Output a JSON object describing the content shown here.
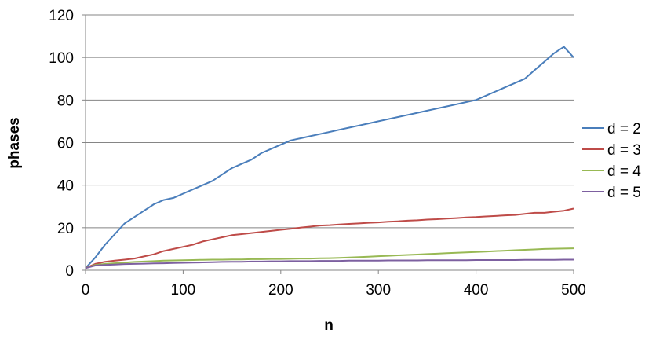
{
  "chart_data": {
    "type": "line",
    "title": "",
    "xlabel": "n",
    "ylabel": "phases",
    "xlim": [
      0,
      500
    ],
    "ylim": [
      0,
      120
    ],
    "xticks": [
      0,
      100,
      200,
      300,
      400,
      500
    ],
    "yticks": [
      0,
      20,
      40,
      60,
      80,
      100,
      120
    ],
    "grid": "horizontal",
    "legend": "right",
    "series": [
      {
        "name": "d = 2",
        "color": "#4a7ebb",
        "x": [
          0,
          10,
          20,
          30,
          40,
          50,
          60,
          70,
          80,
          90,
          100,
          110,
          120,
          130,
          140,
          150,
          160,
          170,
          180,
          190,
          200,
          210,
          220,
          230,
          240,
          250,
          260,
          270,
          280,
          290,
          300,
          310,
          320,
          330,
          340,
          350,
          360,
          370,
          380,
          390,
          400,
          410,
          420,
          430,
          440,
          450,
          460,
          470,
          480,
          490,
          500
        ],
        "y": [
          1,
          6,
          12,
          17,
          22,
          25,
          28,
          31,
          33,
          34,
          36,
          38,
          40,
          42,
          45,
          48,
          50,
          52,
          55,
          57,
          59,
          61,
          62,
          63,
          64,
          65,
          66,
          67,
          68,
          69,
          70,
          71,
          72,
          73,
          74,
          75,
          76,
          77,
          78,
          79,
          80,
          82,
          84,
          86,
          88,
          90,
          94,
          98,
          102,
          105,
          100
        ]
      },
      {
        "name": "d = 3",
        "color": "#be4b48",
        "x": [
          0,
          10,
          20,
          30,
          40,
          50,
          60,
          70,
          80,
          90,
          100,
          110,
          120,
          130,
          140,
          150,
          160,
          170,
          180,
          190,
          200,
          210,
          220,
          230,
          240,
          250,
          260,
          270,
          280,
          290,
          300,
          310,
          320,
          330,
          340,
          350,
          360,
          370,
          380,
          390,
          400,
          410,
          420,
          430,
          440,
          450,
          460,
          470,
          480,
          490,
          500
        ],
        "y": [
          1,
          3,
          4,
          4.5,
          5,
          5.5,
          6.5,
          7.5,
          9,
          10,
          11,
          12,
          13.5,
          14.5,
          15.5,
          16.5,
          17,
          17.5,
          18,
          18.5,
          19,
          19.5,
          20,
          20.5,
          21,
          21.2,
          21.5,
          21.8,
          22,
          22.3,
          22.5,
          22.8,
          23,
          23.3,
          23.5,
          23.8,
          24,
          24.3,
          24.5,
          24.8,
          25,
          25.3,
          25.5,
          25.8,
          26,
          26.5,
          27,
          27,
          27.5,
          28,
          29
        ]
      },
      {
        "name": "d = 4",
        "color": "#98b954",
        "x": [
          0,
          10,
          20,
          30,
          40,
          50,
          60,
          70,
          80,
          90,
          100,
          110,
          120,
          130,
          140,
          150,
          160,
          170,
          180,
          190,
          200,
          210,
          220,
          230,
          240,
          250,
          260,
          270,
          280,
          290,
          300,
          310,
          320,
          330,
          340,
          350,
          360,
          370,
          380,
          390,
          400,
          410,
          420,
          430,
          440,
          450,
          460,
          470,
          480,
          490,
          500
        ],
        "y": [
          1,
          2.5,
          3,
          3.3,
          3.6,
          3.9,
          4.1,
          4.3,
          4.5,
          4.6,
          4.7,
          4.8,
          4.9,
          5,
          5,
          5.1,
          5.1,
          5.2,
          5.2,
          5.3,
          5.3,
          5.4,
          5.5,
          5.5,
          5.6,
          5.7,
          5.8,
          6,
          6.2,
          6.4,
          6.6,
          6.8,
          7,
          7.2,
          7.4,
          7.6,
          7.8,
          8,
          8.2,
          8.4,
          8.6,
          8.8,
          9,
          9.2,
          9.4,
          9.6,
          9.8,
          10,
          10.1,
          10.2,
          10.3
        ]
      },
      {
        "name": "d = 5",
        "color": "#7d60a0",
        "x": [
          0,
          10,
          20,
          30,
          40,
          50,
          60,
          70,
          80,
          90,
          100,
          110,
          120,
          130,
          140,
          150,
          160,
          170,
          180,
          190,
          200,
          210,
          220,
          230,
          240,
          250,
          260,
          270,
          280,
          290,
          300,
          310,
          320,
          330,
          340,
          350,
          360,
          370,
          380,
          390,
          400,
          410,
          420,
          430,
          440,
          450,
          460,
          470,
          480,
          490,
          500
        ],
        "y": [
          1,
          2.2,
          2.5,
          2.7,
          2.9,
          3,
          3.1,
          3.2,
          3.3,
          3.4,
          3.5,
          3.6,
          3.7,
          3.8,
          3.9,
          4,
          4,
          4.1,
          4.1,
          4.2,
          4.2,
          4.3,
          4.3,
          4.3,
          4.4,
          4.4,
          4.4,
          4.5,
          4.5,
          4.5,
          4.5,
          4.6,
          4.6,
          4.6,
          4.6,
          4.7,
          4.7,
          4.7,
          4.7,
          4.7,
          4.8,
          4.8,
          4.8,
          4.8,
          4.8,
          4.9,
          4.9,
          4.9,
          4.9,
          5,
          5
        ]
      }
    ]
  }
}
